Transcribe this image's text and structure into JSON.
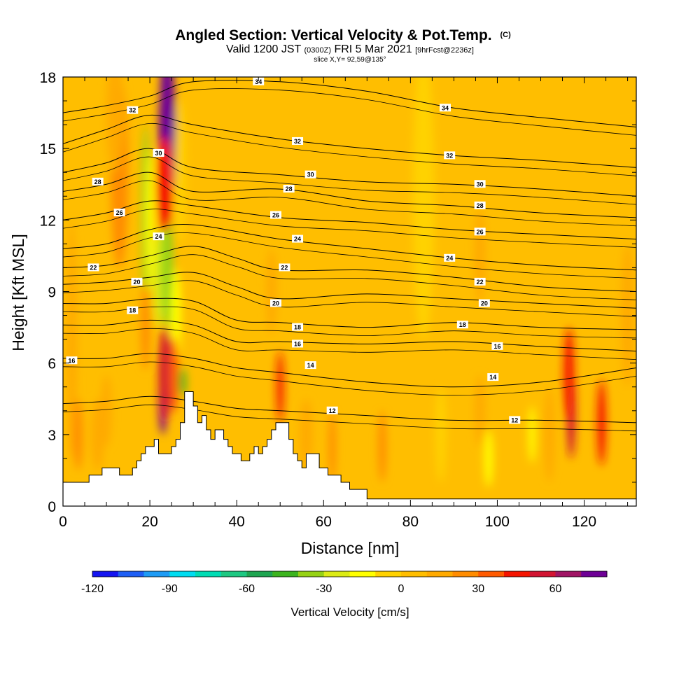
{
  "title": {
    "main": "Angled Section: Vertical Velocity & Pot.Temp.",
    "main_suffix": "(C)",
    "valid_prefix": "Valid 1200 JST",
    "valid_utc": "(0300Z)",
    "valid_date": "FRI 5 Mar 2021",
    "forecast": "[9hrFcst@2236z]",
    "slice": "slice X,Y= 92,59@135°"
  },
  "chart_data": {
    "type": "heatmap",
    "x_axis": {
      "label": "Distance [nm]",
      "range": [
        0,
        132
      ],
      "ticks": [
        0,
        20,
        40,
        60,
        80,
        100,
        120
      ]
    },
    "y_axis": {
      "label": "Height [Kft MSL]",
      "range": [
        0,
        18
      ],
      "ticks": [
        0,
        3,
        6,
        9,
        12,
        15,
        18
      ]
    },
    "colorbar": {
      "label": "Vertical Velocity [cm/s]",
      "min": -120,
      "max": 80,
      "step": 10,
      "tick_values": [
        -120,
        -90,
        -60,
        -30,
        0,
        30,
        60
      ],
      "tick_labels": [
        "-120",
        "-90",
        "-60",
        "-30",
        "0",
        "30",
        "60"
      ],
      "colors": [
        "#1414f0",
        "#1e5ff5",
        "#1e9bf5",
        "#00dcf0",
        "#00dcb4",
        "#1ec882",
        "#1ea550",
        "#3cb41e",
        "#96d214",
        "#dceb14",
        "#ffff00",
        "#ffd200",
        "#ffbe00",
        "#ffaa00",
        "#ff8c00",
        "#ff5a00",
        "#f51400",
        "#d21432",
        "#a01464",
        "#6e0096"
      ]
    },
    "background_value": 0,
    "velocity_cells": [
      {
        "x": 13,
        "y": 14.0,
        "sx": 2.0,
        "sy": 4.0,
        "v": 25
      },
      {
        "x": 12,
        "y": 16.5,
        "sx": 2.0,
        "sy": 2.5,
        "v": 18
      },
      {
        "x": 2,
        "y": 7.0,
        "sx": 1.2,
        "sy": 5.0,
        "v": 10
      },
      {
        "x": 19,
        "y": 12.0,
        "sx": 0.9,
        "sy": 4.0,
        "v": -40
      },
      {
        "x": 20,
        "y": 12.0,
        "sx": 0.9,
        "sy": 3.0,
        "v": -20
      },
      {
        "x": 22,
        "y": 9.5,
        "sx": 1.2,
        "sy": 2.0,
        "v": -25
      },
      {
        "x": 24,
        "y": 10.0,
        "sx": 1.4,
        "sy": 2.5,
        "v": -35
      },
      {
        "x": 26,
        "y": 8.0,
        "sx": 1.2,
        "sy": 2.0,
        "v": -20
      },
      {
        "x": 24,
        "y": 16.5,
        "sx": 1.7,
        "sy": 3.0,
        "v": 80
      },
      {
        "x": 24,
        "y": 15.5,
        "sx": 2.0,
        "sy": 3.0,
        "v": 70
      },
      {
        "x": 23.5,
        "y": 13.5,
        "sx": 1.8,
        "sy": 2.0,
        "v": 40
      },
      {
        "x": 27,
        "y": 14.0,
        "sx": 1.3,
        "sy": 3.0,
        "v": -10
      },
      {
        "x": 23,
        "y": 4.5,
        "sx": 1.0,
        "sy": 1.5,
        "v": 80
      },
      {
        "x": 23.5,
        "y": 5.5,
        "sx": 1.5,
        "sy": 2.0,
        "v": 50
      },
      {
        "x": 25.5,
        "y": 5.5,
        "sx": 1.1,
        "sy": 1.6,
        "v": 30
      },
      {
        "x": 27.5,
        "y": 5.2,
        "sx": 0.8,
        "sy": 0.6,
        "v": -50
      },
      {
        "x": 19,
        "y": 7.5,
        "sx": 1.0,
        "sy": 1.8,
        "v": 20
      },
      {
        "x": 8,
        "y": 3.0,
        "sx": 1.5,
        "sy": 1.5,
        "v": 15
      },
      {
        "x": 3.5,
        "y": 3.0,
        "sx": 1.0,
        "sy": 1.5,
        "v": 25
      },
      {
        "x": 10,
        "y": 4.0,
        "sx": 1.2,
        "sy": 1.5,
        "v": 15
      },
      {
        "x": 50,
        "y": 5.0,
        "sx": 0.8,
        "sy": 1.5,
        "v": 40
      },
      {
        "x": 48,
        "y": 9.0,
        "sx": 1.2,
        "sy": 1.8,
        "v": 15
      },
      {
        "x": 56,
        "y": 3.0,
        "sx": 1.5,
        "sy": 1.5,
        "v": 12
      },
      {
        "x": 62,
        "y": 2.5,
        "sx": 0.8,
        "sy": 1.5,
        "v": 20
      },
      {
        "x": 73.5,
        "y": 2.5,
        "sx": 0.9,
        "sy": 1.5,
        "v": 20
      },
      {
        "x": 83,
        "y": 13.0,
        "sx": 2.5,
        "sy": 6.0,
        "v": -8
      },
      {
        "x": 87,
        "y": 3.0,
        "sx": 1.2,
        "sy": 2.0,
        "v": -10
      },
      {
        "x": 98,
        "y": 2.0,
        "sx": 1.0,
        "sy": 1.2,
        "v": -12
      },
      {
        "x": 96,
        "y": 10.5,
        "sx": 1.3,
        "sy": 2.0,
        "v": 15
      },
      {
        "x": 96,
        "y": 4.0,
        "sx": 1.2,
        "sy": 1.5,
        "v": 12
      },
      {
        "x": 108,
        "y": 3.0,
        "sx": 0.8,
        "sy": 1.2,
        "v": -12
      },
      {
        "x": 117,
        "y": 4.0,
        "sx": 1.0,
        "sy": 2.0,
        "v": 50
      },
      {
        "x": 116.5,
        "y": 5.5,
        "sx": 1.2,
        "sy": 2.0,
        "v": 40
      },
      {
        "x": 124,
        "y": 3.5,
        "sx": 1.0,
        "sy": 1.8,
        "v": 40
      },
      {
        "x": 112,
        "y": 3.0,
        "sx": 1.2,
        "sy": 2.0,
        "v": 12
      },
      {
        "x": 130,
        "y": 8.0,
        "sx": 1.5,
        "sy": 3.0,
        "v": 10
      }
    ],
    "terrain": [
      [
        0,
        1
      ],
      [
        1,
        1
      ],
      [
        2,
        1
      ],
      [
        3,
        1
      ],
      [
        4,
        1
      ],
      [
        5,
        1
      ],
      [
        6,
        1.3
      ],
      [
        7,
        1.3
      ],
      [
        8,
        1.3
      ],
      [
        9,
        1.6
      ],
      [
        10,
        1.6
      ],
      [
        11,
        1.6
      ],
      [
        12,
        1.6
      ],
      [
        13,
        1.3
      ],
      [
        14,
        1.3
      ],
      [
        15,
        1.3
      ],
      [
        16,
        1.6
      ],
      [
        17,
        1.9
      ],
      [
        18,
        2.2
      ],
      [
        19,
        2.5
      ],
      [
        20,
        2.5
      ],
      [
        21,
        2.8
      ],
      [
        22,
        2.2
      ],
      [
        23,
        2.2
      ],
      [
        24,
        2.2
      ],
      [
        25,
        2.5
      ],
      [
        26,
        2.8
      ],
      [
        27,
        3.5
      ],
      [
        28,
        4.8
      ],
      [
        29,
        4.8
      ],
      [
        30,
        4.2
      ],
      [
        31,
        3.5
      ],
      [
        32,
        3.8
      ],
      [
        33,
        3.2
      ],
      [
        34,
        2.8
      ],
      [
        35,
        3.2
      ],
      [
        36,
        3.2
      ],
      [
        37,
        2.8
      ],
      [
        38,
        2.5
      ],
      [
        39,
        2.2
      ],
      [
        40,
        2.2
      ],
      [
        41,
        1.9
      ],
      [
        42,
        1.9
      ],
      [
        43,
        2.2
      ],
      [
        44,
        2.5
      ],
      [
        45,
        2.2
      ],
      [
        46,
        2.5
      ],
      [
        47,
        2.8
      ],
      [
        48,
        3.2
      ],
      [
        49,
        3.5
      ],
      [
        50,
        3.5
      ],
      [
        51,
        3.5
      ],
      [
        52,
        2.8
      ],
      [
        53,
        2.2
      ],
      [
        54,
        1.9
      ],
      [
        55,
        1.6
      ],
      [
        56,
        2.2
      ],
      [
        57,
        2.2
      ],
      [
        58,
        2.2
      ],
      [
        59,
        1.6
      ],
      [
        60,
        1.6
      ],
      [
        61,
        1.3
      ],
      [
        62,
        1.3
      ],
      [
        63,
        1.3
      ],
      [
        64,
        1.0
      ],
      [
        65,
        1.0
      ],
      [
        66,
        0.7
      ],
      [
        67,
        0.7
      ],
      [
        68,
        0.7
      ],
      [
        69,
        0.7
      ],
      [
        70,
        0.3
      ],
      [
        132,
        0.3
      ]
    ],
    "isentropes": {
      "label_values": [
        34,
        32,
        30,
        28,
        26,
        24,
        22,
        20,
        18,
        16,
        14,
        12
      ],
      "lines": [
        {
          "theta": 34,
          "pts": [
            [
              0,
              16.5
            ],
            [
              10,
              16.8
            ],
            [
              20,
              17.2
            ],
            [
              30,
              17.8
            ],
            [
              50,
              17.8
            ],
            [
              70,
              17.4
            ],
            [
              90,
              16.7
            ],
            [
              110,
              16.3
            ],
            [
              132,
              15.9
            ]
          ]
        },
        {
          "theta": 32,
          "pts": [
            [
              0,
              15.2
            ],
            [
              10,
              15.8
            ],
            [
              20,
              16.4
            ],
            [
              30,
              16.0
            ],
            [
              50,
              15.4
            ],
            [
              70,
              15.0
            ],
            [
              90,
              14.7
            ],
            [
              110,
              14.5
            ],
            [
              132,
              14.2
            ]
          ]
        },
        {
          "theta": 30,
          "pts": [
            [
              0,
              14.0
            ],
            [
              10,
              14.4
            ],
            [
              20,
              15.0
            ],
            [
              30,
              14.2
            ],
            [
              50,
              13.9
            ],
            [
              70,
              13.6
            ],
            [
              90,
              13.5
            ],
            [
              110,
              13.3
            ],
            [
              132,
              13.0
            ]
          ]
        },
        {
          "theta": 28,
          "pts": [
            [
              0,
              13.2
            ],
            [
              10,
              13.5
            ],
            [
              20,
              14.0
            ],
            [
              30,
              13.2
            ],
            [
              50,
              13.3
            ],
            [
              70,
              12.8
            ],
            [
              90,
              12.6
            ],
            [
              110,
              12.3
            ],
            [
              132,
              12.1
            ]
          ]
        },
        {
          "theta": 26,
          "pts": [
            [
              0,
              12.0
            ],
            [
              10,
              12.3
            ],
            [
              20,
              12.8
            ],
            [
              30,
              12.6
            ],
            [
              50,
              12.1
            ],
            [
              70,
              11.9
            ],
            [
              90,
              11.6
            ],
            [
              110,
              11.4
            ],
            [
              132,
              11.2
            ]
          ]
        },
        {
          "theta": 24,
          "pts": [
            [
              0,
              10.8
            ],
            [
              10,
              11.0
            ],
            [
              20,
              11.6
            ],
            [
              30,
              11.8
            ],
            [
              50,
              11.2
            ],
            [
              70,
              10.8
            ],
            [
              90,
              10.4
            ],
            [
              110,
              10.1
            ],
            [
              132,
              9.9
            ]
          ]
        },
        {
          "theta": 22,
          "pts": [
            [
              0,
              10.0
            ],
            [
              10,
              10.1
            ],
            [
              20,
              10.5
            ],
            [
              30,
              10.9
            ],
            [
              40,
              10.4
            ],
            [
              50,
              9.9
            ],
            [
              70,
              9.9
            ],
            [
              90,
              9.6
            ],
            [
              110,
              9.2
            ],
            [
              132,
              9.0
            ]
          ]
        },
        {
          "theta": 20,
          "pts": [
            [
              0,
              9.3
            ],
            [
              10,
              9.4
            ],
            [
              20,
              9.6
            ],
            [
              30,
              9.8
            ],
            [
              40,
              9.2
            ],
            [
              50,
              8.7
            ],
            [
              70,
              8.9
            ],
            [
              90,
              8.7
            ],
            [
              110,
              8.5
            ],
            [
              132,
              8.3
            ]
          ]
        },
        {
          "theta": 18,
          "pts": [
            [
              0,
              8.5
            ],
            [
              10,
              8.5
            ],
            [
              20,
              8.7
            ],
            [
              30,
              8.6
            ],
            [
              40,
              7.8
            ],
            [
              50,
              7.7
            ],
            [
              70,
              7.5
            ],
            [
              90,
              7.7
            ],
            [
              110,
              7.5
            ],
            [
              132,
              7.4
            ]
          ]
        },
        {
          "theta": 16,
          "pts": [
            [
              0,
              7.6
            ],
            [
              10,
              7.6
            ],
            [
              20,
              7.8
            ],
            [
              30,
              7.6
            ],
            [
              40,
              6.9
            ],
            [
              50,
              6.9
            ],
            [
              70,
              6.8
            ],
            [
              90,
              6.9
            ],
            [
              110,
              6.7
            ],
            [
              132,
              6.5
            ]
          ]
        },
        {
          "theta": 14,
          "pts": [
            [
              0,
              6.2
            ],
            [
              10,
              6.2
            ],
            [
              20,
              6.4
            ],
            [
              30,
              6.2
            ],
            [
              40,
              5.8
            ],
            [
              50,
              5.6
            ],
            [
              70,
              5.2
            ],
            [
              90,
              5.0
            ],
            [
              110,
              5.2
            ],
            [
              132,
              5.8
            ]
          ]
        },
        {
          "theta": 12,
          "pts": [
            [
              0,
              4.3
            ],
            [
              10,
              4.4
            ],
            [
              20,
              4.6
            ],
            [
              30,
              4.4
            ],
            [
              40,
              4.1
            ],
            [
              50,
              4.0
            ],
            [
              70,
              3.8
            ],
            [
              90,
              3.6
            ],
            [
              110,
              3.6
            ],
            [
              132,
              3.5
            ]
          ]
        }
      ],
      "labels": [
        {
          "text": "34",
          "x": 45,
          "y": 17.8
        },
        {
          "text": "34",
          "x": 88,
          "y": 16.7
        },
        {
          "text": "32",
          "x": 16,
          "y": 16.6
        },
        {
          "text": "32",
          "x": 54,
          "y": 15.3
        },
        {
          "text": "32",
          "x": 89,
          "y": 14.7
        },
        {
          "text": "30",
          "x": 22,
          "y": 14.8
        },
        {
          "text": "30",
          "x": 57,
          "y": 13.9
        },
        {
          "text": "30",
          "x": 96,
          "y": 13.5
        },
        {
          "text": "28",
          "x": 8,
          "y": 13.6
        },
        {
          "text": "28",
          "x": 52,
          "y": 13.3
        },
        {
          "text": "28",
          "x": 96,
          "y": 12.6
        },
        {
          "text": "26",
          "x": 13,
          "y": 12.3
        },
        {
          "text": "26",
          "x": 49,
          "y": 12.2
        },
        {
          "text": "26",
          "x": 96,
          "y": 11.5
        },
        {
          "text": "24",
          "x": 22,
          "y": 11.3
        },
        {
          "text": "24",
          "x": 54,
          "y": 11.2
        },
        {
          "text": "24",
          "x": 89,
          "y": 10.4
        },
        {
          "text": "22",
          "x": 7,
          "y": 10.0
        },
        {
          "text": "22",
          "x": 51,
          "y": 10.0
        },
        {
          "text": "22",
          "x": 96,
          "y": 9.4
        },
        {
          "text": "20",
          "x": 17,
          "y": 9.4
        },
        {
          "text": "20",
          "x": 49,
          "y": 8.5
        },
        {
          "text": "20",
          "x": 97,
          "y": 8.5
        },
        {
          "text": "18",
          "x": 16,
          "y": 8.2
        },
        {
          "text": "18",
          "x": 54,
          "y": 7.5
        },
        {
          "text": "18",
          "x": 92,
          "y": 7.6
        },
        {
          "text": "16",
          "x": 54,
          "y": 6.8
        },
        {
          "text": "16",
          "x": 100,
          "y": 6.7
        },
        {
          "text": "16",
          "x": 2,
          "y": 6.1
        },
        {
          "text": "14",
          "x": 57,
          "y": 5.9
        },
        {
          "text": "14",
          "x": 99,
          "y": 5.4
        },
        {
          "text": "12",
          "x": 62,
          "y": 4.0
        },
        {
          "text": "12",
          "x": 104,
          "y": 3.6
        }
      ]
    }
  }
}
